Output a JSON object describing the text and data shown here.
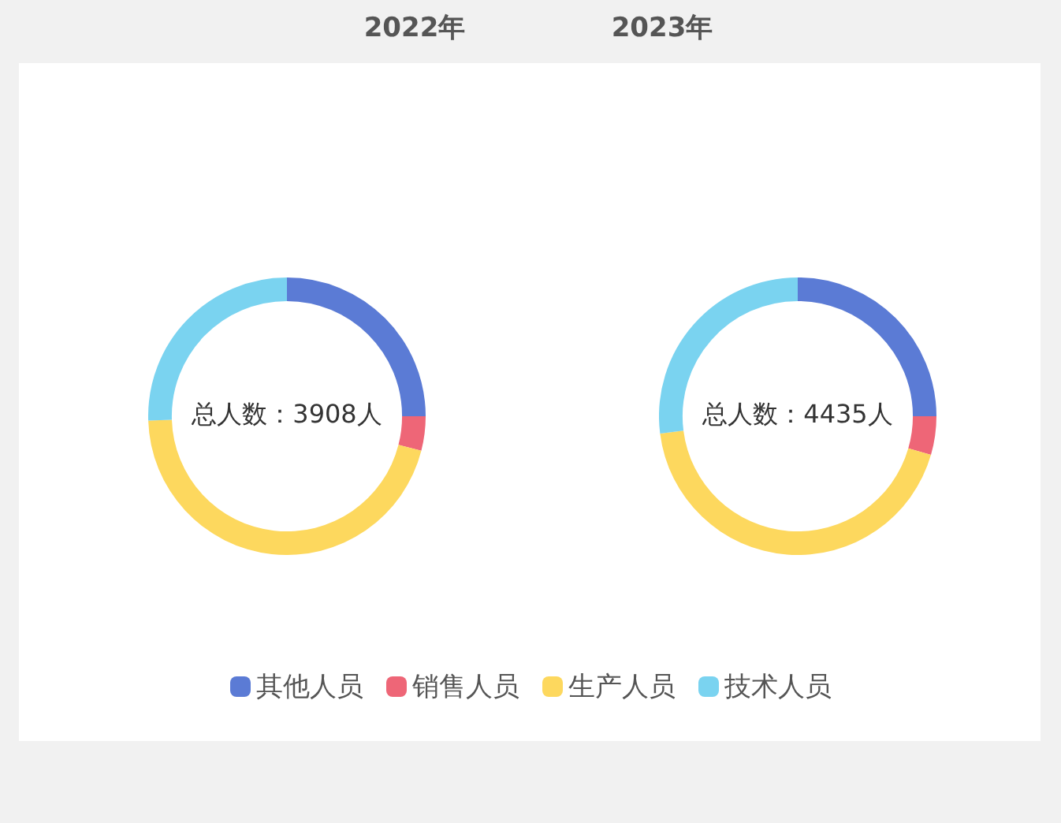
{
  "chart_data": [
    {
      "type": "donut",
      "title": "2022年",
      "categories": [
        "其他人员",
        "销售人员",
        "生产人员",
        "技术人员"
      ],
      "values": [
        25,
        4,
        45.5,
        25.5
      ],
      "colors": [
        "#5b7bd5",
        "#ee6677",
        "#fdd85e",
        "#7ad3f0"
      ],
      "annotations": [
        "总人数：3908人"
      ],
      "legend": "bottom"
    },
    {
      "type": "donut",
      "title": "2023年",
      "categories": [
        null,
        null,
        null,
        null
      ],
      "values": [
        25,
        4.5,
        43.5,
        27
      ],
      "colors": [
        "#5b7bd5",
        "#ee6677",
        "#fdd85e",
        "#7ad3f0"
      ],
      "annotations": [
        "总人数：4435人"
      ]
    }
  ]
}
